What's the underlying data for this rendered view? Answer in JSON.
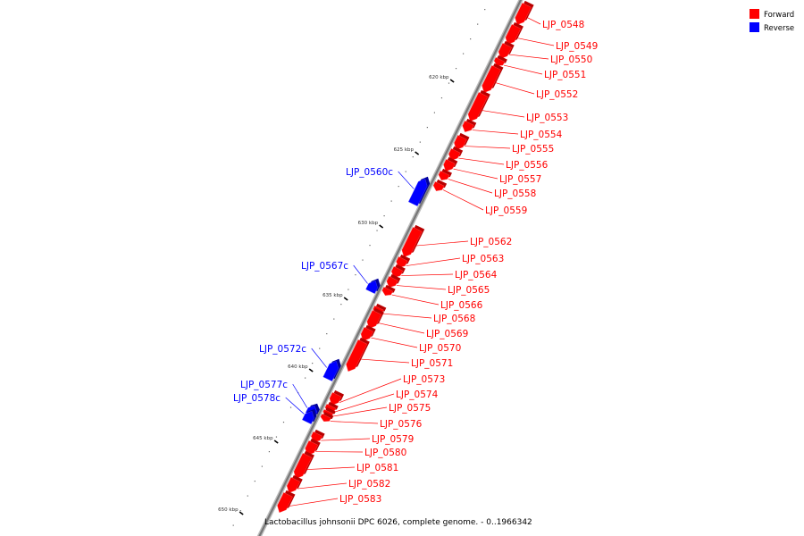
{
  "caption": "Lactobacillus johnsonii DPC 6026, complete genome. - 0..1966342",
  "legend": [
    {
      "label": "Forward",
      "color": "#ff0000"
    },
    {
      "label": "Reverse",
      "color": "#0000ff"
    }
  ],
  "colors": {
    "forward": "#ff0000",
    "reverse": "#0000ff",
    "backbone": "#777777"
  },
  "scale_labels": [
    "620 kbp",
    "625 kbp",
    "630 kbp",
    "635 kbp",
    "640 kbp",
    "645 kbp",
    "650 kbp"
  ],
  "genes": [
    {
      "name": "LJP_0548",
      "strand": "forward"
    },
    {
      "name": "LJP_0549",
      "strand": "forward"
    },
    {
      "name": "LJP_0550",
      "strand": "forward"
    },
    {
      "name": "LJP_0551",
      "strand": "forward"
    },
    {
      "name": "LJP_0552",
      "strand": "forward"
    },
    {
      "name": "LJP_0553",
      "strand": "forward"
    },
    {
      "name": "LJP_0554",
      "strand": "forward"
    },
    {
      "name": "LJP_0555",
      "strand": "forward"
    },
    {
      "name": "LJP_0556",
      "strand": "forward"
    },
    {
      "name": "LJP_0557",
      "strand": "forward"
    },
    {
      "name": "LJP_0558",
      "strand": "forward"
    },
    {
      "name": "LJP_0559",
      "strand": "forward"
    },
    {
      "name": "LJP_0560c",
      "strand": "reverse"
    },
    {
      "name": "LJP_0562",
      "strand": "forward"
    },
    {
      "name": "LJP_0563",
      "strand": "forward"
    },
    {
      "name": "LJP_0564",
      "strand": "forward"
    },
    {
      "name": "LJP_0565",
      "strand": "forward"
    },
    {
      "name": "LJP_0567c",
      "strand": "reverse"
    },
    {
      "name": "LJP_0566",
      "strand": "forward"
    },
    {
      "name": "LJP_0568",
      "strand": "forward"
    },
    {
      "name": "LJP_0569",
      "strand": "forward"
    },
    {
      "name": "LJP_0570",
      "strand": "forward"
    },
    {
      "name": "LJP_0571",
      "strand": "forward"
    },
    {
      "name": "LJP_0572c",
      "strand": "reverse"
    },
    {
      "name": "LJP_0573",
      "strand": "forward"
    },
    {
      "name": "LJP_0574",
      "strand": "forward"
    },
    {
      "name": "LJP_0577c",
      "strand": "reverse"
    },
    {
      "name": "LJP_0578c",
      "strand": "reverse"
    },
    {
      "name": "LJP_0575",
      "strand": "forward"
    },
    {
      "name": "LJP_0576",
      "strand": "forward"
    },
    {
      "name": "LJP_0579",
      "strand": "forward"
    },
    {
      "name": "LJP_0580",
      "strand": "forward"
    },
    {
      "name": "LJP_0581",
      "strand": "forward"
    },
    {
      "name": "LJP_0582",
      "strand": "forward"
    },
    {
      "name": "LJP_0583",
      "strand": "forward"
    }
  ]
}
